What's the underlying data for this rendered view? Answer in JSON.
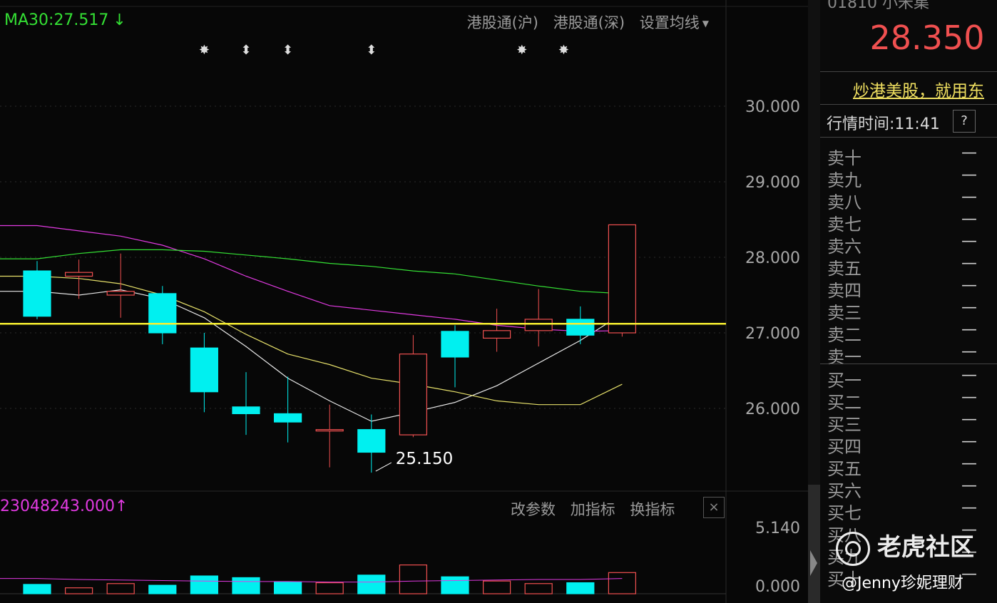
{
  "ma_label": "MA30:27.517",
  "ma_arrow": "↓",
  "top_links": [
    "港股通(沪)",
    "港股通(深)",
    "设置均线"
  ],
  "annotation_price": "25.150",
  "volume_label": "23048243.000",
  "volume_arrow": "↑",
  "vol_actions": [
    "改参数",
    "加指标",
    "换指标"
  ],
  "close_symbol": "×",
  "panel": {
    "code_fragment": "01810 小米集",
    "last_price": "28.350",
    "promo": "炒港美股，就用东",
    "time_label": "行情时间:11:41",
    "help_symbol": "?",
    "sell_levels": [
      "卖十",
      "卖九",
      "卖八",
      "卖七",
      "卖六",
      "卖五",
      "卖四",
      "卖三",
      "卖二",
      "卖一"
    ],
    "buy_levels": [
      "买一",
      "买二",
      "买三",
      "买四",
      "买五",
      "买六",
      "买七",
      "买八",
      "买九",
      "买十"
    ],
    "empty_value": "—"
  },
  "watermark": {
    "brand": "老虎社区",
    "author": "@Jenny珍妮理财"
  },
  "chart_data": {
    "type": "candlestick",
    "price_axis_ticks": [
      "30.000",
      "29.000",
      "28.000",
      "27.000",
      "26.000"
    ],
    "price_axis_range": [
      24.9,
      31.5
    ],
    "volume_axis_ticks": [
      "5.140",
      "0.000"
    ],
    "horizontal_line_value": 27.12,
    "annotation_low": 25.15,
    "marker_symbols": [
      "✸",
      "⬍",
      "⬍",
      "⬍",
      "✸",
      "✸"
    ],
    "candles": [
      {
        "o": 27.82,
        "h": 27.95,
        "l": 27.18,
        "c": 27.22,
        "v": 0.55
      },
      {
        "o": 27.75,
        "h": 27.97,
        "l": 27.45,
        "c": 27.8,
        "v": 0.35
      },
      {
        "o": 27.5,
        "h": 28.05,
        "l": 27.2,
        "c": 27.55,
        "v": 0.6
      },
      {
        "o": 27.52,
        "h": 27.62,
        "l": 26.85,
        "c": 27.0,
        "v": 0.5
      },
      {
        "o": 26.8,
        "h": 27.0,
        "l": 25.95,
        "c": 26.22,
        "v": 1.05
      },
      {
        "o": 26.02,
        "h": 26.48,
        "l": 25.65,
        "c": 25.93,
        "v": 0.95
      },
      {
        "o": 25.93,
        "h": 26.42,
        "l": 25.55,
        "c": 25.82,
        "v": 0.7
      },
      {
        "o": 25.72,
        "h": 26.05,
        "l": 25.22,
        "c": 25.72,
        "v": 0.65
      },
      {
        "o": 25.72,
        "h": 25.92,
        "l": 25.15,
        "c": 25.42,
        "v": 1.1
      },
      {
        "o": 25.65,
        "h": 26.97,
        "l": 25.62,
        "c": 26.72,
        "v": 1.7
      },
      {
        "o": 27.02,
        "h": 27.1,
        "l": 26.28,
        "c": 26.68,
        "v": 1.0
      },
      {
        "o": 26.93,
        "h": 27.32,
        "l": 26.75,
        "c": 27.03,
        "v": 0.75
      },
      {
        "o": 27.03,
        "h": 27.58,
        "l": 26.82,
        "c": 27.18,
        "v": 0.6
      },
      {
        "o": 27.18,
        "h": 27.35,
        "l": 26.85,
        "c": 26.97,
        "v": 0.65
      },
      {
        "o": 27.0,
        "h": 28.43,
        "l": 26.95,
        "c": 28.43,
        "v": 1.25
      }
    ],
    "ma_lines": [
      {
        "color": "#e8e8e8",
        "values": [
          27.55,
          27.5,
          27.57,
          27.45,
          27.2,
          26.82,
          26.4,
          26.1,
          25.83,
          25.95,
          26.08,
          26.3,
          26.6,
          26.9,
          27.25
        ]
      },
      {
        "color": "#e6e06a",
        "values": [
          27.75,
          27.72,
          27.65,
          27.5,
          27.28,
          26.98,
          26.72,
          26.58,
          26.4,
          26.32,
          26.22,
          26.1,
          26.05,
          26.05,
          26.32
        ]
      },
      {
        "color": "#e23ae2",
        "values": [
          28.42,
          28.35,
          28.28,
          28.16,
          27.98,
          27.75,
          27.55,
          27.36,
          27.3,
          27.24,
          27.18,
          27.1,
          27.05,
          27.02,
          27.03
        ]
      },
      {
        "color": "#34e034",
        "values": [
          27.98,
          28.05,
          28.1,
          28.1,
          28.08,
          28.03,
          27.98,
          27.92,
          27.88,
          27.82,
          27.78,
          27.7,
          27.62,
          27.55,
          27.52
        ]
      }
    ],
    "volume_ma": [
      0.3,
      0.28,
      0.27,
      0.26,
      0.25,
      0.24,
      0.24,
      0.23,
      0.23,
      0.25,
      0.26,
      0.27,
      0.28,
      0.28,
      0.3
    ]
  }
}
